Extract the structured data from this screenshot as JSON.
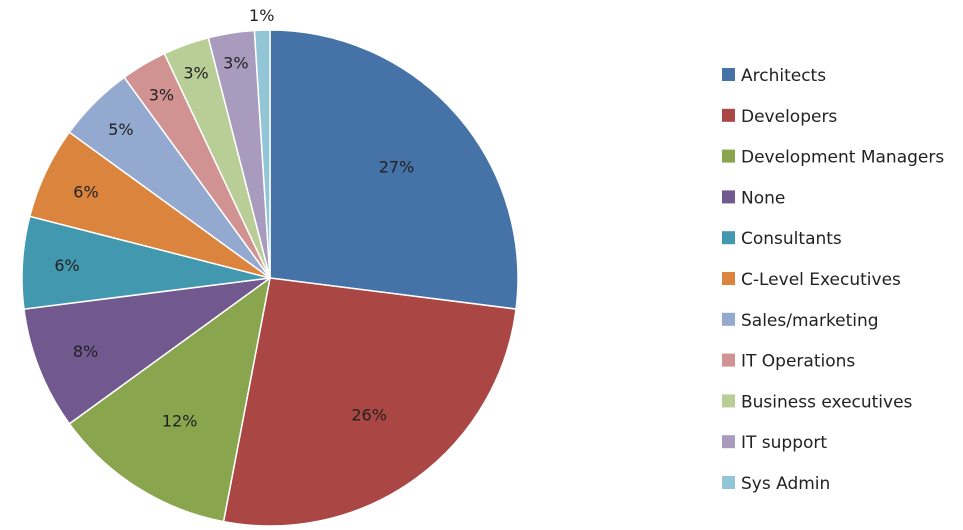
{
  "chart_data": {
    "type": "pie",
    "title": "",
    "legend_position": "right",
    "slices": [
      {
        "label": "Architects",
        "value": 27,
        "display": "27%",
        "color": "#4572A7"
      },
      {
        "label": "Developers",
        "value": 26,
        "display": "26%",
        "color": "#AA4643"
      },
      {
        "label": "Development Managers",
        "value": 12,
        "display": "12%",
        "color": "#89A54E"
      },
      {
        "label": "None",
        "value": 8,
        "display": "8%",
        "color": "#71588F"
      },
      {
        "label": "Consultants",
        "value": 6,
        "display": "6%",
        "color": "#4198AF"
      },
      {
        "label": "C-Level Executives",
        "value": 6,
        "display": "6%",
        "color": "#DB843D"
      },
      {
        "label": "Sales/marketing",
        "value": 5,
        "display": "5%",
        "color": "#93A9CF"
      },
      {
        "label": "IT Operations",
        "value": 3,
        "display": "3%",
        "color": "#D19392"
      },
      {
        "label": "Business executives",
        "value": 3,
        "display": "3%",
        "color": "#B9CD96"
      },
      {
        "label": "IT support",
        "value": 3,
        "display": "3%",
        "color": "#A99BBD"
      },
      {
        "label": "Sys Admin",
        "value": 1,
        "display": "1%",
        "color": "#92C5D6"
      }
    ]
  }
}
